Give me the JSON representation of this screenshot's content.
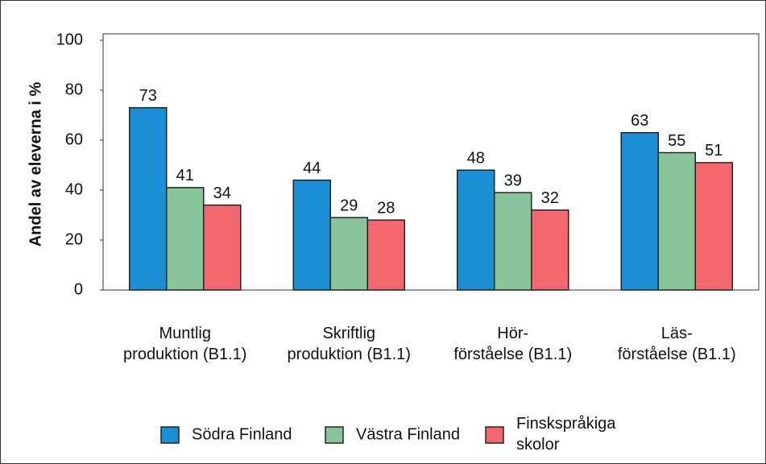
{
  "chart_data": {
    "type": "bar",
    "y_label": "Andel av eleverna i %",
    "categories": [
      "Muntlig\nproduktion (B1.1)",
      "Skriftlig\nproduktion (B1.1)",
      "Hör-\nförståelse (B1.1)",
      "Läs-\nförståelse (B1.1)"
    ],
    "series": [
      {
        "name": "Södra Finland",
        "color": "#1a8fd6",
        "values": [
          73,
          44,
          48,
          63
        ]
      },
      {
        "name": "Västra Finland",
        "color": "#88c69a",
        "values": [
          41,
          29,
          39,
          55
        ]
      },
      {
        "name": "Finskspråkiga\nskolor",
        "color": "#f4676e",
        "values": [
          34,
          28,
          32,
          51
        ]
      }
    ],
    "ylim": [
      0,
      100
    ],
    "yticks": [
      0,
      20,
      40,
      60,
      80,
      100
    ],
    "grid": false
  }
}
